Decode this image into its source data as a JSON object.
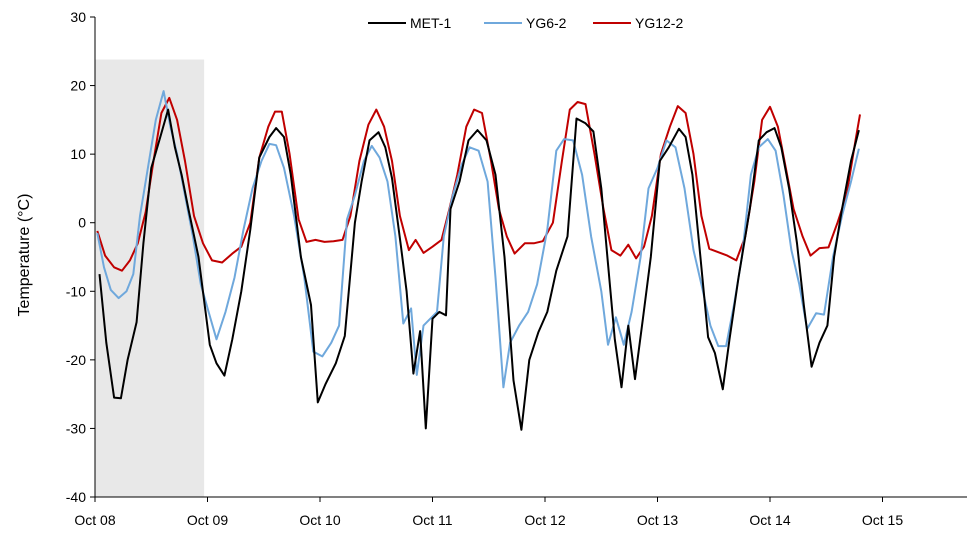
{
  "chart_data": {
    "type": "line",
    "title": "",
    "xlabel": "",
    "ylabel": "Temperature (°C)",
    "ylim": [
      -40,
      30
    ],
    "yticks": [
      -40,
      -30,
      -20,
      -10,
      0,
      10,
      20,
      30
    ],
    "xlim": [
      0,
      7.77
    ],
    "xtick_labels": [
      "Oct 08",
      "Oct 09",
      "Oct 10",
      "Oct 11",
      "Oct 12",
      "Oct 13",
      "Oct 14",
      "Oct 15"
    ],
    "x_unit": "days since Oct 08 00:00",
    "grid": false,
    "legend_position": "top-center",
    "shaded_region": {
      "x_start": 0,
      "x_end": 0.97,
      "color": "#e8e8e8"
    },
    "series": [
      {
        "name": "MET-1",
        "color": "#000000",
        "points": [
          [
            0.04,
            -7.5
          ],
          [
            0.1,
            -17.5
          ],
          [
            0.17,
            -25.5
          ],
          [
            0.23,
            -25.6
          ],
          [
            0.29,
            -20
          ],
          [
            0.37,
            -14.5
          ],
          [
            0.43,
            -3
          ],
          [
            0.5,
            8
          ],
          [
            0.58,
            12.5
          ],
          [
            0.65,
            16.5
          ],
          [
            0.71,
            11
          ],
          [
            0.77,
            7
          ],
          [
            0.83,
            2
          ],
          [
            0.92,
            -5
          ],
          [
            1.02,
            -17.8
          ],
          [
            1.08,
            -20.5
          ],
          [
            1.15,
            -22.3
          ],
          [
            1.22,
            -17
          ],
          [
            1.3,
            -10
          ],
          [
            1.38,
            -1
          ],
          [
            1.46,
            9.5
          ],
          [
            1.55,
            12.5
          ],
          [
            1.61,
            13.8
          ],
          [
            1.68,
            12.5
          ],
          [
            1.74,
            7
          ],
          [
            1.83,
            -5
          ],
          [
            1.92,
            -12
          ],
          [
            1.98,
            -26.2
          ],
          [
            2.05,
            -23.5
          ],
          [
            2.14,
            -20.5
          ],
          [
            2.22,
            -16.5
          ],
          [
            2.31,
            0
          ],
          [
            2.37,
            6
          ],
          [
            2.44,
            12
          ],
          [
            2.52,
            13.2
          ],
          [
            2.58,
            11
          ],
          [
            2.64,
            6.5
          ],
          [
            2.72,
            -3.5
          ],
          [
            2.77,
            -10
          ],
          [
            2.83,
            -22
          ],
          [
            2.89,
            -15.8
          ],
          [
            2.94,
            -30
          ],
          [
            3.0,
            -14
          ],
          [
            3.06,
            -13
          ],
          [
            3.12,
            -13.5
          ],
          [
            3.16,
            2
          ],
          [
            3.24,
            6
          ],
          [
            3.32,
            12
          ],
          [
            3.4,
            13.5
          ],
          [
            3.48,
            12
          ],
          [
            3.56,
            7
          ],
          [
            3.64,
            -5
          ],
          [
            3.72,
            -23
          ],
          [
            3.79,
            -30.2
          ],
          [
            3.86,
            -20
          ],
          [
            3.94,
            -16
          ],
          [
            4.02,
            -13
          ],
          [
            4.1,
            -7
          ],
          [
            4.2,
            -2
          ],
          [
            4.28,
            15.2
          ],
          [
            4.36,
            14.5
          ],
          [
            4.43,
            13.3
          ],
          [
            4.5,
            5
          ],
          [
            4.56,
            -6
          ],
          [
            4.62,
            -17
          ],
          [
            4.68,
            -24
          ],
          [
            4.74,
            -15
          ],
          [
            4.8,
            -22.8
          ],
          [
            4.87,
            -14
          ],
          [
            4.94,
            -5
          ],
          [
            5.02,
            9
          ],
          [
            5.1,
            11
          ],
          [
            5.19,
            13.7
          ],
          [
            5.25,
            12.5
          ],
          [
            5.31,
            7
          ],
          [
            5.37,
            -3
          ],
          [
            5.45,
            -16.7
          ],
          [
            5.51,
            -19
          ],
          [
            5.58,
            -24.3
          ],
          [
            5.64,
            -17
          ],
          [
            5.72,
            -8
          ],
          [
            5.82,
            2
          ],
          [
            5.9,
            12
          ],
          [
            5.97,
            13.2
          ],
          [
            6.04,
            13.8
          ],
          [
            6.1,
            11
          ],
          [
            6.17,
            5
          ],
          [
            6.24,
            -3
          ],
          [
            6.3,
            -12
          ],
          [
            6.37,
            -21
          ],
          [
            6.44,
            -17.5
          ],
          [
            6.51,
            -15
          ],
          [
            6.57,
            -5
          ],
          [
            6.64,
            2
          ],
          [
            6.72,
            9
          ],
          [
            6.79,
            13.5
          ]
        ]
      },
      {
        "name": "YG6-2",
        "color": "#6fa8dc",
        "points": [
          [
            0.02,
            -1.5
          ],
          [
            0.08,
            -6.5
          ],
          [
            0.14,
            -9.8
          ],
          [
            0.21,
            -11
          ],
          [
            0.28,
            -10
          ],
          [
            0.34,
            -7.5
          ],
          [
            0.4,
            1
          ],
          [
            0.47,
            8
          ],
          [
            0.54,
            15
          ],
          [
            0.61,
            19.2
          ],
          [
            0.67,
            14
          ],
          [
            0.73,
            10
          ],
          [
            0.8,
            4
          ],
          [
            0.87,
            -2
          ],
          [
            0.94,
            -9
          ],
          [
            1.01,
            -13
          ],
          [
            1.08,
            -17
          ],
          [
            1.16,
            -13
          ],
          [
            1.24,
            -8
          ],
          [
            1.32,
            -1
          ],
          [
            1.4,
            5
          ],
          [
            1.48,
            9
          ],
          [
            1.55,
            11.5
          ],
          [
            1.61,
            11.3
          ],
          [
            1.68,
            8
          ],
          [
            1.77,
            1
          ],
          [
            1.86,
            -8
          ],
          [
            1.94,
            -18.8
          ],
          [
            2.02,
            -19.5
          ],
          [
            2.1,
            -17.5
          ],
          [
            2.17,
            -15
          ],
          [
            2.24,
            0.5
          ],
          [
            2.31,
            4
          ],
          [
            2.39,
            9
          ],
          [
            2.46,
            11.2
          ],
          [
            2.53,
            9.5
          ],
          [
            2.6,
            6
          ],
          [
            2.67,
            -2
          ],
          [
            2.74,
            -14.7
          ],
          [
            2.81,
            -12.5
          ],
          [
            2.86,
            -22.2
          ],
          [
            2.92,
            -15
          ],
          [
            2.98,
            -14
          ],
          [
            3.04,
            -13
          ],
          [
            3.1,
            -2
          ],
          [
            3.18,
            4
          ],
          [
            3.26,
            8.5
          ],
          [
            3.33,
            11
          ],
          [
            3.41,
            10.5
          ],
          [
            3.49,
            6
          ],
          [
            3.56,
            -8
          ],
          [
            3.63,
            -24
          ],
          [
            3.69,
            -17.5
          ],
          [
            3.77,
            -15
          ],
          [
            3.85,
            -13
          ],
          [
            3.93,
            -9
          ],
          [
            4.02,
            -1
          ],
          [
            4.1,
            10.5
          ],
          [
            4.17,
            12.2
          ],
          [
            4.25,
            12
          ],
          [
            4.33,
            7
          ],
          [
            4.41,
            -2
          ],
          [
            4.5,
            -10
          ],
          [
            4.56,
            -17.8
          ],
          [
            4.63,
            -13.8
          ],
          [
            4.7,
            -17.8
          ],
          [
            4.77,
            -13
          ],
          [
            4.85,
            -5
          ],
          [
            4.92,
            5
          ],
          [
            5.0,
            8
          ],
          [
            5.08,
            12
          ],
          [
            5.16,
            11
          ],
          [
            5.24,
            5
          ],
          [
            5.32,
            -4
          ],
          [
            5.4,
            -9.7
          ],
          [
            5.47,
            -15
          ],
          [
            5.54,
            -18
          ],
          [
            5.61,
            -18
          ],
          [
            5.68,
            -12
          ],
          [
            5.75,
            -5
          ],
          [
            5.83,
            7
          ],
          [
            5.9,
            11
          ],
          [
            5.98,
            12.2
          ],
          [
            6.05,
            10.5
          ],
          [
            6.12,
            4
          ],
          [
            6.19,
            -4
          ],
          [
            6.26,
            -9
          ],
          [
            6.33,
            -15.5
          ],
          [
            6.41,
            -13.2
          ],
          [
            6.48,
            -13.4
          ],
          [
            6.56,
            -5
          ],
          [
            6.64,
            1
          ],
          [
            6.72,
            6
          ],
          [
            6.79,
            10.8
          ]
        ]
      },
      {
        "name": "YG12-2",
        "color": "#c00000",
        "points": [
          [
            0.02,
            -1.2
          ],
          [
            0.09,
            -4.8
          ],
          [
            0.17,
            -6.5
          ],
          [
            0.24,
            -7
          ],
          [
            0.31,
            -5.5
          ],
          [
            0.38,
            -3
          ],
          [
            0.45,
            1.5
          ],
          [
            0.52,
            9
          ],
          [
            0.59,
            16
          ],
          [
            0.66,
            18.2
          ],
          [
            0.73,
            15
          ],
          [
            0.8,
            9
          ],
          [
            0.88,
            1
          ],
          [
            0.96,
            -3
          ],
          [
            1.04,
            -5.5
          ],
          [
            1.13,
            -5.8
          ],
          [
            1.22,
            -4.5
          ],
          [
            1.3,
            -3.5
          ],
          [
            1.38,
            0
          ],
          [
            1.46,
            9.5
          ],
          [
            1.54,
            14
          ],
          [
            1.6,
            16.2
          ],
          [
            1.66,
            16.2
          ],
          [
            1.73,
            10
          ],
          [
            1.81,
            0.5
          ],
          [
            1.88,
            -2.8
          ],
          [
            1.96,
            -2.5
          ],
          [
            2.04,
            -2.8
          ],
          [
            2.12,
            -2.7
          ],
          [
            2.2,
            -2.5
          ],
          [
            2.27,
            1
          ],
          [
            2.35,
            9
          ],
          [
            2.43,
            14.3
          ],
          [
            2.5,
            16.5
          ],
          [
            2.57,
            14
          ],
          [
            2.64,
            9
          ],
          [
            2.71,
            1
          ],
          [
            2.79,
            -4
          ],
          [
            2.85,
            -2.5
          ],
          [
            2.92,
            -4.4
          ],
          [
            3.0,
            -3.5
          ],
          [
            3.08,
            -2.5
          ],
          [
            3.15,
            2
          ],
          [
            3.22,
            7
          ],
          [
            3.3,
            14
          ],
          [
            3.37,
            16.5
          ],
          [
            3.44,
            16
          ],
          [
            3.52,
            9
          ],
          [
            3.59,
            2
          ],
          [
            3.66,
            -2
          ],
          [
            3.73,
            -4.5
          ],
          [
            3.82,
            -3
          ],
          [
            3.9,
            -3
          ],
          [
            3.98,
            -2.7
          ],
          [
            4.07,
            0
          ],
          [
            4.15,
            9
          ],
          [
            4.22,
            16.5
          ],
          [
            4.29,
            17.6
          ],
          [
            4.36,
            17.3
          ],
          [
            4.44,
            10
          ],
          [
            4.52,
            2
          ],
          [
            4.59,
            -4
          ],
          [
            4.67,
            -4.8
          ],
          [
            4.74,
            -3.2
          ],
          [
            4.81,
            -5.2
          ],
          [
            4.88,
            -3.5
          ],
          [
            4.95,
            1
          ],
          [
            5.03,
            10
          ],
          [
            5.11,
            14
          ],
          [
            5.18,
            17
          ],
          [
            5.25,
            16
          ],
          [
            5.32,
            10
          ],
          [
            5.39,
            1
          ],
          [
            5.46,
            -3.8
          ],
          [
            5.54,
            -4.3
          ],
          [
            5.62,
            -4.8
          ],
          [
            5.7,
            -5.5
          ],
          [
            5.78,
            -2
          ],
          [
            5.86,
            6
          ],
          [
            5.93,
            15
          ],
          [
            6.0,
            16.9
          ],
          [
            6.07,
            14
          ],
          [
            6.14,
            8
          ],
          [
            6.21,
            2
          ],
          [
            6.29,
            -2
          ],
          [
            6.36,
            -4.8
          ],
          [
            6.44,
            -3.7
          ],
          [
            6.52,
            -3.6
          ],
          [
            6.6,
            0
          ],
          [
            6.68,
            4
          ],
          [
            6.76,
            12
          ],
          [
            6.8,
            15.8
          ]
        ]
      }
    ]
  }
}
